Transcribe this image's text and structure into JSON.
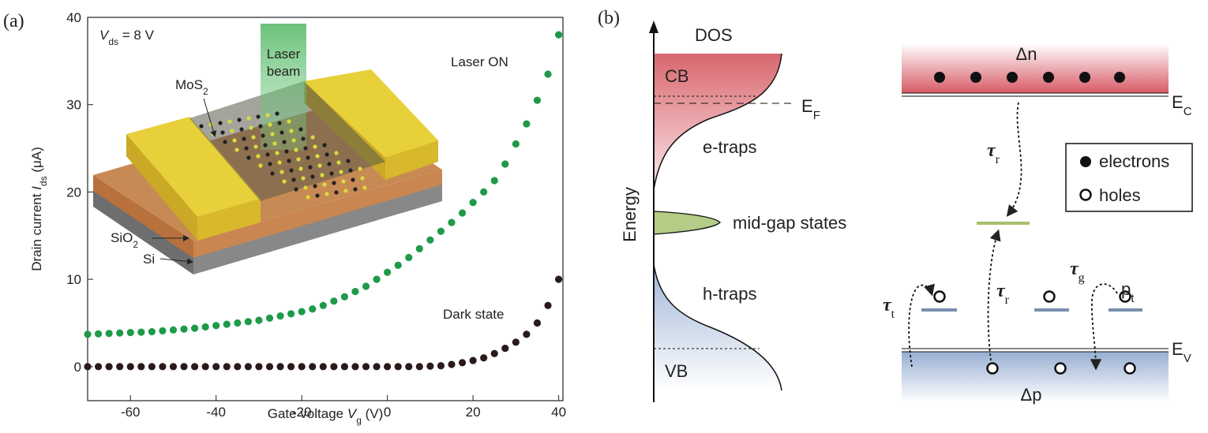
{
  "chart_data": {
    "type": "scatter",
    "label": "(a)",
    "xlabel": {
      "text": "Gate voltage ",
      "var": "V",
      "sub": "g",
      "unit": " (V)"
    },
    "ylabel": {
      "text": "Drain current ",
      "var": "I",
      "sub": "ds",
      "unit": " (μA)"
    },
    "annotations": {
      "vds": {
        "var": "V",
        "sub": "ds",
        "rest": " = 8 V"
      },
      "laser_beam": [
        "Laser",
        "beam"
      ],
      "mos2": {
        "text": "MoS",
        "sub": "2"
      },
      "sio2": {
        "text": "SiO",
        "sub": "2"
      },
      "si": "Si"
    },
    "x": [
      -70,
      -67.5,
      -65,
      -62.5,
      -60,
      -57.5,
      -55,
      -52.5,
      -50,
      -47.5,
      -45,
      -42.5,
      -40,
      -37.5,
      -35,
      -32.5,
      -30,
      -27.5,
      -25,
      -22.5,
      -20,
      -17.5,
      -15,
      -12.5,
      -10,
      -7.5,
      -5,
      -2.5,
      0,
      2.5,
      5,
      7.5,
      10,
      12.5,
      15,
      17.5,
      20,
      22.5,
      25,
      27.5,
      30,
      32.5,
      35,
      37.5,
      40
    ],
    "series": [
      {
        "name": "Laser ON",
        "color": "#1e9a48",
        "values": [
          3.7,
          3.75,
          3.8,
          3.85,
          3.9,
          3.95,
          4.0,
          4.1,
          4.2,
          4.3,
          4.4,
          4.55,
          4.7,
          4.85,
          5.0,
          5.15,
          5.3,
          5.55,
          5.8,
          6.05,
          6.3,
          6.6,
          7.0,
          7.5,
          8.0,
          8.6,
          9.2,
          10.0,
          10.8,
          11.6,
          12.5,
          13.5,
          14.5,
          15.5,
          16.5,
          17.6,
          18.8,
          20.0,
          21.3,
          23.2,
          25.5,
          27.8,
          30.5,
          33.5,
          38
        ]
      },
      {
        "name": "Dark state",
        "color": "#2a1a1a",
        "values": [
          0,
          0,
          0,
          0,
          0,
          0,
          0,
          0,
          0,
          0,
          0,
          0,
          0,
          0,
          0,
          0,
          0,
          0,
          0,
          0,
          0,
          0,
          0,
          0,
          0,
          0,
          0,
          0,
          0,
          0,
          0,
          0,
          0.05,
          0.1,
          0.25,
          0.45,
          0.7,
          1.0,
          1.5,
          2.1,
          2.8,
          3.7,
          5.0,
          7.0,
          10.0
        ]
      }
    ],
    "xlim": [
      -70,
      41
    ],
    "ylim": [
      -3.9,
      40
    ],
    "xticks": [
      -60,
      -40,
      -20,
      0,
      20,
      40
    ],
    "yticks": [
      0,
      10,
      20,
      30,
      40
    ]
  },
  "diagram": {
    "label": "(b)",
    "dos": "DOS",
    "energy": "Energy",
    "cb": "CB",
    "vb": "VB",
    "ef": {
      "text": "E",
      "sub": "F"
    },
    "e_traps": "e-traps",
    "mid_gap": "mid-gap states",
    "h_traps": "h-traps",
    "delta_n": "Δn",
    "delta_p": "Δp",
    "ec": {
      "text": "E",
      "sub": "C"
    },
    "ev": {
      "text": "E",
      "sub": "V"
    },
    "tau_r_down": {
      "text": "τ",
      "sub": "r"
    },
    "tau_r_up": {
      "text": "τ",
      "sub": "r"
    },
    "tau_t": {
      "text": "τ",
      "sub": "t"
    },
    "tau_g": {
      "text": "τ",
      "sub": "g"
    },
    "pt": {
      "text": "p",
      "sub": "t"
    },
    "legend": {
      "electrons": "electrons",
      "holes": "holes"
    }
  }
}
